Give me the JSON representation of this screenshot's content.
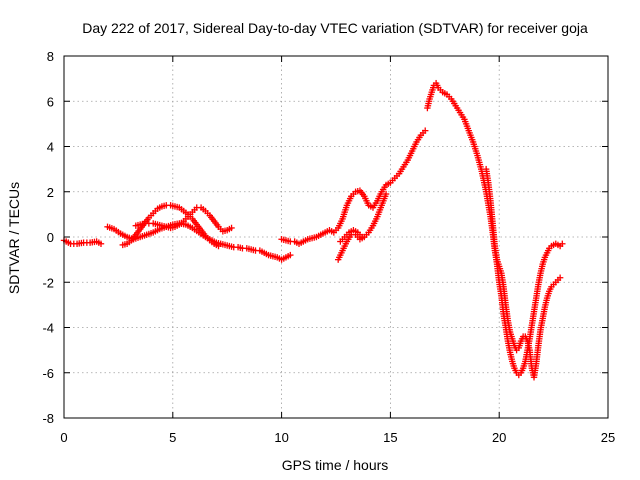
{
  "chart_data": {
    "type": "scatter",
    "title": "Day 222 of 2017, Sidereal Day-to-day VTEC variation (SDTVAR) for receiver goja",
    "xlabel": "GPS time / hours",
    "ylabel": "SDTVAR / TECUs",
    "xlim": [
      0,
      25
    ],
    "ylim": [
      -8,
      8
    ],
    "xticks": [
      "0",
      "5",
      "10",
      "15",
      "20",
      "25"
    ],
    "yticks": [
      "-8",
      "-6",
      "-4",
      "-2",
      "0",
      "2",
      "4",
      "6",
      "8"
    ],
    "grid": true,
    "marker": "plus",
    "color": "#ff0000",
    "segments": [
      {
        "x": [
          0.0,
          0.3,
          0.6,
          0.9,
          1.2,
          1.5,
          1.7
        ],
        "y": [
          -0.15,
          -0.3,
          -0.3,
          -0.25,
          -0.25,
          -0.2,
          -0.3
        ]
      },
      {
        "x": [
          2.0,
          2.3,
          2.6,
          2.9,
          3.2,
          3.5,
          3.8,
          4.1,
          4.4,
          4.7,
          5.0,
          5.3,
          5.6,
          5.9,
          6.2,
          6.5,
          6.8,
          7.0,
          7.2,
          7.4,
          7.6,
          7.8,
          8.0,
          8.2,
          8.4,
          8.6,
          8.8,
          9.0,
          9.2,
          9.4,
          9.6,
          9.8,
          10.0,
          10.2,
          10.4
        ],
        "y": [
          0.45,
          0.35,
          0.15,
          0.0,
          -0.1,
          0.0,
          0.1,
          0.2,
          0.35,
          0.45,
          0.55,
          0.6,
          0.55,
          0.4,
          0.2,
          0.0,
          -0.15,
          -0.25,
          -0.3,
          -0.35,
          -0.4,
          -0.45,
          -0.45,
          -0.5,
          -0.5,
          -0.55,
          -0.6,
          -0.6,
          -0.7,
          -0.8,
          -0.85,
          -0.9,
          -1.0,
          -0.9,
          -0.8
        ]
      },
      {
        "x": [
          2.7,
          2.9,
          3.1,
          3.3,
          3.5,
          3.7,
          3.9,
          4.1,
          4.3,
          4.5,
          4.7,
          4.9,
          5.1,
          5.3,
          5.5,
          5.7,
          5.9,
          6.1,
          6.3,
          6.5,
          6.7,
          6.9,
          7.1
        ],
        "y": [
          -0.35,
          -0.3,
          -0.15,
          0.1,
          0.35,
          0.6,
          0.85,
          1.05,
          1.25,
          1.35,
          1.4,
          1.4,
          1.35,
          1.3,
          1.15,
          1.0,
          0.8,
          0.55,
          0.3,
          0.05,
          -0.15,
          -0.3,
          -0.4
        ]
      },
      {
        "x": [
          3.3,
          3.5,
          3.7,
          3.9,
          4.1,
          4.3,
          4.5,
          4.7,
          4.9,
          5.1,
          5.3,
          5.5,
          5.7,
          5.9,
          6.1,
          6.3,
          6.5,
          6.7,
          6.9,
          7.1,
          7.3,
          7.5,
          7.7
        ],
        "y": [
          0.5,
          0.55,
          0.6,
          0.6,
          0.6,
          0.55,
          0.5,
          0.45,
          0.4,
          0.45,
          0.55,
          0.7,
          0.9,
          1.1,
          1.3,
          1.3,
          1.15,
          0.95,
          0.7,
          0.45,
          0.25,
          0.3,
          0.4
        ]
      },
      {
        "x": [
          10.0,
          10.2,
          10.4,
          10.6,
          10.8,
          11.0,
          11.2,
          11.4,
          11.6,
          11.8,
          12.0,
          12.2,
          12.4,
          12.6,
          12.8,
          13.0,
          13.2,
          13.4,
          13.6,
          13.8,
          14.0,
          14.2,
          14.4,
          14.6,
          14.8,
          15.0,
          15.2,
          15.4,
          15.6,
          15.8,
          16.0,
          16.2,
          16.4,
          16.6
        ],
        "y": [
          -0.1,
          -0.15,
          -0.2,
          -0.2,
          -0.3,
          -0.2,
          -0.1,
          -0.05,
          0.0,
          0.1,
          0.2,
          0.3,
          0.2,
          0.4,
          0.8,
          1.4,
          1.8,
          2.0,
          2.05,
          1.8,
          1.4,
          1.3,
          1.6,
          2.0,
          2.3,
          2.4,
          2.6,
          2.8,
          3.1,
          3.4,
          3.8,
          4.2,
          4.5,
          4.7
        ]
      },
      {
        "x": [
          12.6,
          12.8,
          13.0,
          13.2,
          13.4,
          13.6,
          13.8,
          14.0,
          14.2,
          14.4,
          14.6,
          14.8
        ],
        "y": [
          -1.0,
          -0.6,
          -0.2,
          0.1,
          0.1,
          -0.1,
          0.0,
          0.2,
          0.5,
          0.9,
          1.4,
          1.9
        ]
      },
      {
        "x": [
          12.7,
          12.9,
          13.1,
          13.3,
          13.5,
          13.7
        ],
        "y": [
          -0.2,
          0.0,
          0.2,
          0.3,
          0.2,
          0.0
        ]
      },
      {
        "x": [
          16.7,
          16.8,
          16.9,
          17.0,
          17.1,
          17.2,
          17.4,
          17.6,
          17.8,
          18.0,
          18.2,
          18.4,
          18.6,
          18.8,
          19.0,
          19.2,
          19.4,
          19.6,
          19.7,
          19.8,
          19.9,
          20.0,
          20.1,
          20.2,
          20.3,
          20.4,
          20.5,
          20.6,
          20.7,
          20.8,
          20.9,
          21.0,
          21.1,
          21.2,
          21.3,
          21.4,
          21.5,
          21.6,
          21.7,
          21.8,
          21.9,
          22.0,
          22.1,
          22.2,
          22.3,
          22.4,
          22.5,
          22.6,
          22.7,
          22.8,
          22.9
        ],
        "y": [
          5.7,
          6.1,
          6.4,
          6.7,
          6.8,
          6.6,
          6.4,
          6.3,
          6.1,
          5.8,
          5.5,
          5.2,
          4.7,
          4.2,
          3.6,
          2.9,
          2.0,
          0.9,
          0.2,
          -0.6,
          -1.2,
          -2.0,
          -2.6,
          -3.4,
          -4.0,
          -4.6,
          -5.1,
          -5.5,
          -5.8,
          -6.0,
          -6.1,
          -6.0,
          -5.8,
          -5.5,
          -5.0,
          -4.5,
          -3.9,
          -3.3,
          -2.7,
          -2.1,
          -1.6,
          -1.2,
          -0.9,
          -0.7,
          -0.5,
          -0.4,
          -0.35,
          -0.3,
          -0.35,
          -0.4,
          -0.3
        ]
      },
      {
        "x": [
          19.4,
          19.5,
          19.6,
          19.7,
          19.8,
          19.9,
          20.0,
          20.1,
          20.2,
          20.3,
          20.4,
          20.5,
          20.6,
          20.7,
          20.8,
          20.9,
          21.0,
          21.1,
          21.2,
          21.3,
          21.4,
          21.5,
          21.6,
          21.7,
          21.8,
          21.9,
          22.0,
          22.1,
          22.2,
          22.3,
          22.4,
          22.5,
          22.6,
          22.7,
          22.8
        ],
        "y": [
          3.0,
          2.4,
          1.6,
          0.6,
          -0.4,
          -1.0,
          -1.3,
          -1.6,
          -2.2,
          -3.0,
          -3.7,
          -4.2,
          -4.5,
          -4.8,
          -5.0,
          -4.9,
          -4.6,
          -4.4,
          -4.4,
          -4.6,
          -5.0,
          -5.8,
          -6.2,
          -5.6,
          -4.8,
          -4.1,
          -3.6,
          -3.1,
          -2.7,
          -2.4,
          -2.2,
          -2.1,
          -2.0,
          -1.9,
          -1.8
        ]
      }
    ]
  }
}
